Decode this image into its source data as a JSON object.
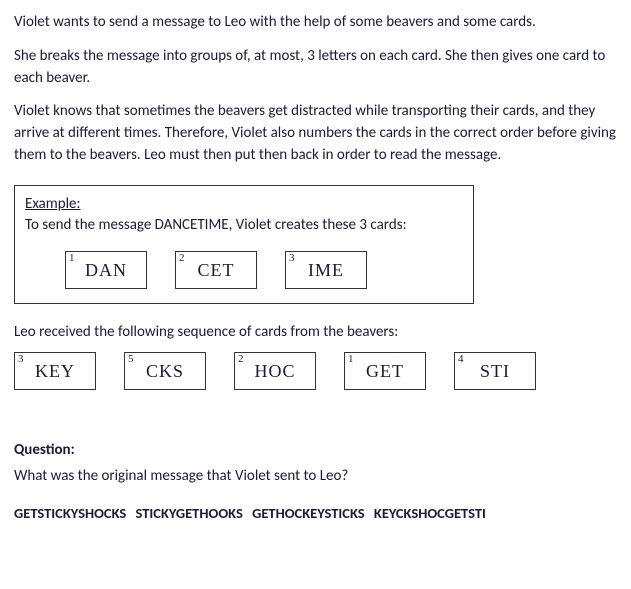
{
  "intro": {
    "p1": "Violet wants to send a message to Leo with the help of some beavers and some cards.",
    "p2": "She breaks the message into groups of, at most, 3 letters on each card. She then gives one card to each beaver.",
    "p3": "Violet knows that sometimes the beavers get distracted while transporting their cards, and they arrive at different times. Therefore, Violet also numbers the cards in the correct order before giving them to the beavers. Leo must then put then back in order to read the message."
  },
  "example": {
    "label": "Example:",
    "text": "To send the message DANCETIME, Violet creates these 3 cards:",
    "cards": [
      {
        "num": "1",
        "text": "DAN"
      },
      {
        "num": "2",
        "text": "CET"
      },
      {
        "num": "3",
        "text": "IME"
      }
    ]
  },
  "received": {
    "label": "Leo received the following sequence of cards from the beavers:",
    "cards": [
      {
        "num": "3",
        "text": "KEY"
      },
      {
        "num": "5",
        "text": "CKS"
      },
      {
        "num": "2",
        "text": "HOC"
      },
      {
        "num": "1",
        "text": "GET"
      },
      {
        "num": "4",
        "text": "STI"
      }
    ]
  },
  "question": {
    "label": "Question:",
    "text": "What was the original message that Violet sent to Leo?",
    "answers": "GETSTICKYSHOCKS STICKYGETHOOKS GETHOCKEYSTICKS KEYCKSHOCGETSTI"
  }
}
